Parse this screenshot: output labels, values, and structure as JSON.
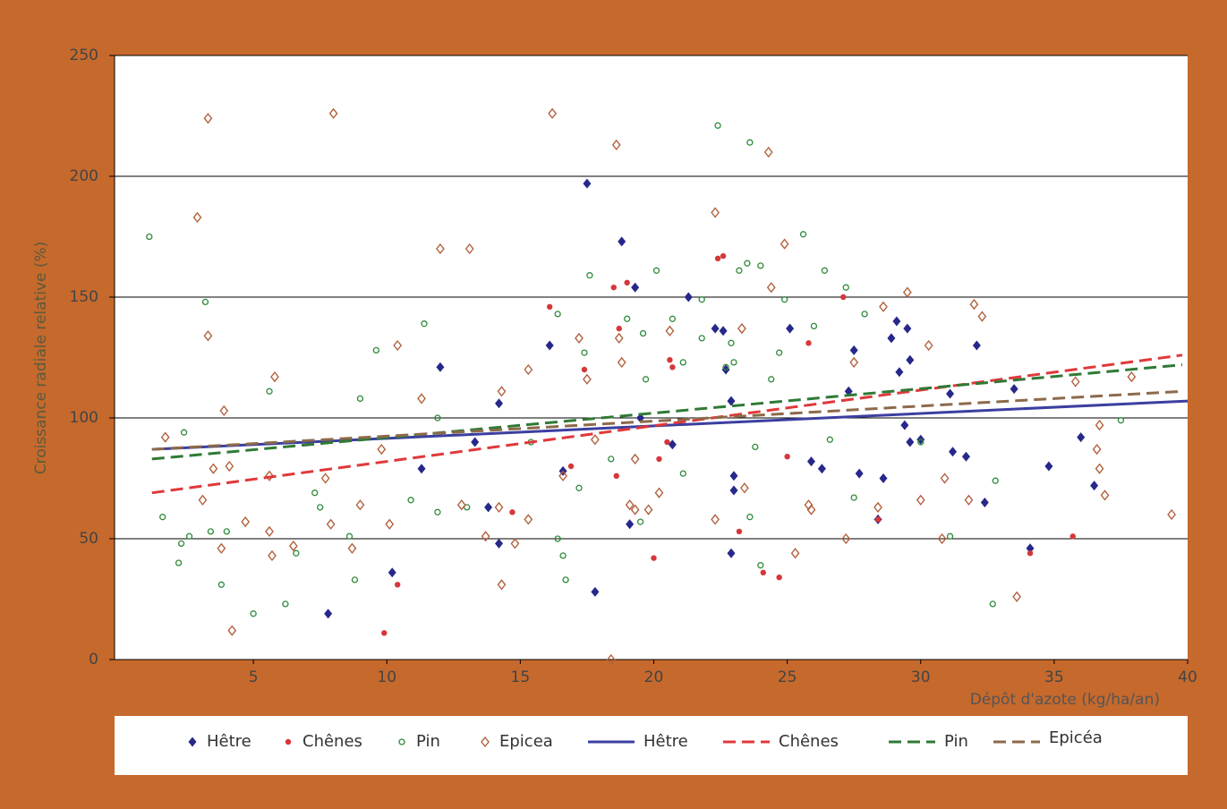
{
  "chart_data": {
    "type": "scatter",
    "x_label": "Dépôt d'azote (kg/ha/an)",
    "y_label": "Croissance radiale relative (%)",
    "xlim": [
      0,
      40
    ],
    "ylim": [
      0,
      250
    ],
    "xticks": [
      5,
      10,
      15,
      20,
      25,
      30,
      35,
      40
    ],
    "yticks": [
      0,
      50,
      100,
      150,
      200,
      250
    ],
    "grid": true,
    "series": [
      {
        "name": "Hêtre",
        "kind": "scatter",
        "marker": "diamond-filled",
        "color": "#27288a",
        "x": [
          10.2,
          7.8,
          11.3,
          12.0,
          13.3,
          13.8,
          14.2,
          14.2,
          16.1,
          16.6,
          17.5,
          17.8,
          18.8,
          19.1,
          19.3,
          19.5,
          20.7,
          21.3,
          22.3,
          22.6,
          22.7,
          22.9,
          23.0,
          23.0,
          22.9,
          25.1,
          25.9,
          26.3,
          27.5,
          27.3,
          27.7,
          28.6,
          28.9,
          29.2,
          29.1,
          29.4,
          29.6,
          29.6,
          29.5,
          30.0,
          31.1,
          31.2,
          31.7,
          32.1,
          32.4,
          33.5,
          34.1,
          34.8,
          36.0,
          36.5,
          28.4
        ],
        "values": [
          36,
          19,
          79,
          121,
          90,
          63,
          106,
          48,
          130,
          78,
          197,
          28,
          173,
          56,
          154,
          100,
          89,
          150,
          137,
          136,
          120,
          107,
          76,
          70,
          44,
          137,
          82,
          79,
          128,
          111,
          77,
          75,
          133,
          119,
          140,
          97,
          90,
          124,
          137,
          91,
          110,
          86,
          84,
          130,
          65,
          112,
          46,
          80,
          92,
          72,
          58
        ]
      },
      {
        "name": "Chênes",
        "kind": "scatter",
        "marker": "dot",
        "color": "#d6373a",
        "x": [
          10.4,
          9.9,
          16.9,
          16.1,
          17.4,
          18.5,
          18.7,
          19.0,
          20.0,
          20.2,
          20.5,
          20.6,
          20.7,
          22.4,
          22.6,
          23.2,
          24.1,
          24.7,
          25.0,
          25.8,
          27.1,
          34.1,
          35.7,
          14.7,
          18.6,
          28.4
        ],
        "values": [
          31,
          11,
          80,
          146,
          120,
          154,
          137,
          156,
          42,
          83,
          90,
          124,
          121,
          166,
          167,
          53,
          36,
          34,
          84,
          131,
          150,
          44,
          51,
          61,
          76,
          58
        ]
      },
      {
        "name": "Pin",
        "kind": "scatter",
        "marker": "circle-open",
        "color": "#2e8a3a",
        "x": [
          1.1,
          1.6,
          2.2,
          2.3,
          2.4,
          2.6,
          3.2,
          3.4,
          3.8,
          4.0,
          5.0,
          5.6,
          6.2,
          6.6,
          7.3,
          7.5,
          8.6,
          8.8,
          9.0,
          9.6,
          10.9,
          11.4,
          11.9,
          11.9,
          13.0,
          15.4,
          16.4,
          16.4,
          16.6,
          16.7,
          17.2,
          17.4,
          17.6,
          18.4,
          19.0,
          19.5,
          19.6,
          19.7,
          20.1,
          20.7,
          21.1,
          21.1,
          21.8,
          21.8,
          22.4,
          22.7,
          22.9,
          23.0,
          23.2,
          23.5,
          23.6,
          23.6,
          23.8,
          24.0,
          24.0,
          24.4,
          24.7,
          24.9,
          25.6,
          26.0,
          26.4,
          26.6,
          27.2,
          27.5,
          27.9,
          30.0,
          31.1,
          32.7,
          32.8,
          37.5
        ],
        "values": [
          175,
          59,
          40,
          48,
          94,
          51,
          148,
          53,
          31,
          53,
          19,
          111,
          23,
          44,
          69,
          63,
          51,
          33,
          108,
          128,
          66,
          139,
          100,
          61,
          63,
          90,
          50,
          143,
          43,
          33,
          71,
          127,
          159,
          83,
          141,
          57,
          135,
          116,
          161,
          141,
          77,
          123,
          149,
          133,
          221,
          121,
          131,
          123,
          161,
          164,
          214,
          59,
          88,
          163,
          39,
          116,
          127,
          149,
          176,
          138,
          161,
          91,
          154,
          67,
          143,
          90,
          51,
          23,
          74,
          99
        ]
      },
      {
        "name": "Epicea",
        "kind": "scatter",
        "marker": "diamond-open",
        "color": "#b3613e",
        "x": [
          1.7,
          2.9,
          3.3,
          3.3,
          3.1,
          3.5,
          3.9,
          3.8,
          4.2,
          4.1,
          4.7,
          5.6,
          5.6,
          5.8,
          5.7,
          6.5,
          7.7,
          8.0,
          7.9,
          8.7,
          9.0,
          9.8,
          10.1,
          10.4,
          11.3,
          12.0,
          13.1,
          12.8,
          13.7,
          14.3,
          14.2,
          14.3,
          14.8,
          15.3,
          15.3,
          16.2,
          16.6,
          17.2,
          17.5,
          17.8,
          18.4,
          18.6,
          18.7,
          18.8,
          19.1,
          19.3,
          19.3,
          19.8,
          20.2,
          20.6,
          22.3,
          22.3,
          23.4,
          23.3,
          24.3,
          24.4,
          24.9,
          25.3,
          25.8,
          25.9,
          27.2,
          27.5,
          28.4,
          28.6,
          29.5,
          30.0,
          30.3,
          30.9,
          30.8,
          32.0,
          32.3,
          31.8,
          33.6,
          36.7,
          36.6,
          36.7,
          36.9,
          37.9,
          39.4,
          35.8
        ],
        "values": [
          92,
          183,
          224,
          134,
          66,
          79,
          103,
          46,
          12,
          80,
          57,
          76,
          53,
          117,
          43,
          47,
          75,
          226,
          56,
          46,
          64,
          87,
          56,
          130,
          108,
          170,
          170,
          64,
          51,
          111,
          63,
          31,
          48,
          120,
          58,
          226,
          76,
          133,
          116,
          91,
          0,
          213,
          133,
          123,
          64,
          83,
          62,
          62,
          69,
          136,
          185,
          58,
          71,
          137,
          210,
          154,
          172,
          44,
          64,
          62,
          50,
          123,
          63,
          146,
          152,
          66,
          130,
          75,
          50,
          147,
          142,
          66,
          26,
          97,
          87,
          79,
          68,
          117,
          60,
          115
        ]
      },
      {
        "name": "Hêtre",
        "kind": "line",
        "dash": "solid",
        "color": "#3b3fa0",
        "x": [
          1.2,
          40
        ],
        "values": [
          87,
          107
        ]
      },
      {
        "name": "Chênes",
        "kind": "line",
        "dash": "dashed",
        "color": "#e0383a",
        "x": [
          1.2,
          39.8
        ],
        "values": [
          69,
          126
        ]
      },
      {
        "name": "Pin",
        "kind": "line",
        "dash": "dashed",
        "color": "#2f7a35",
        "x": [
          1.2,
          39.8
        ],
        "values": [
          83,
          122
        ]
      },
      {
        "name": "Epicéa",
        "kind": "line",
        "dash": "dashed",
        "color": "#8c6a4a",
        "x": [
          1.2,
          39.8
        ],
        "values": [
          87,
          111
        ]
      }
    ]
  }
}
